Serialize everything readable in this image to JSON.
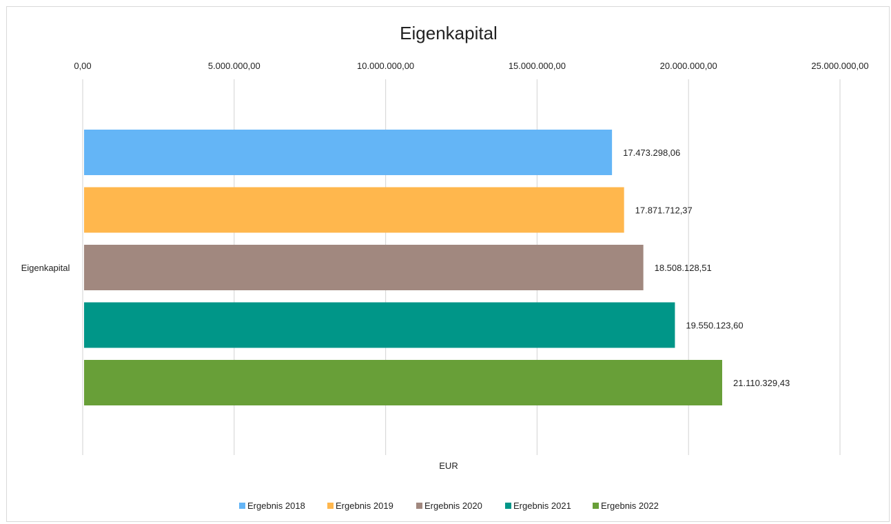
{
  "chart_data": {
    "type": "bar",
    "orientation": "horizontal",
    "title": "Eigenkapital",
    "categories": [
      "Eigenkapital"
    ],
    "xlabel": "EUR",
    "ylabel": "",
    "xlim": [
      0,
      25000000
    ],
    "x_ticks": [
      0,
      5000000,
      10000000,
      15000000,
      20000000,
      25000000
    ],
    "x_tick_labels": [
      "0,00",
      "5.000.000,00",
      "10.000.000,00",
      "15.000.000,00",
      "20.000.000,00",
      "25.000.000,00"
    ],
    "x_axis_position": "top",
    "grid": true,
    "legend_position": "bottom",
    "series": [
      {
        "name": "Ergebnis 2018",
        "values": [
          17473298.06
        ],
        "label": "17.473.298,06",
        "color": "#64b5f6"
      },
      {
        "name": "Ergebnis 2019",
        "values": [
          17871712.37
        ],
        "label": "17.871.712,37",
        "color": "#ffb74d"
      },
      {
        "name": "Ergebnis 2020",
        "values": [
          18508128.51
        ],
        "label": "18.508.128,51",
        "color": "#a1887f"
      },
      {
        "name": "Ergebnis 2021",
        "values": [
          19550123.6
        ],
        "label": "19.550.123,60",
        "color": "#009688"
      },
      {
        "name": "Ergebnis 2022",
        "values": [
          21110329.43
        ],
        "label": "21.110.329,43",
        "color": "#689f38"
      }
    ]
  }
}
